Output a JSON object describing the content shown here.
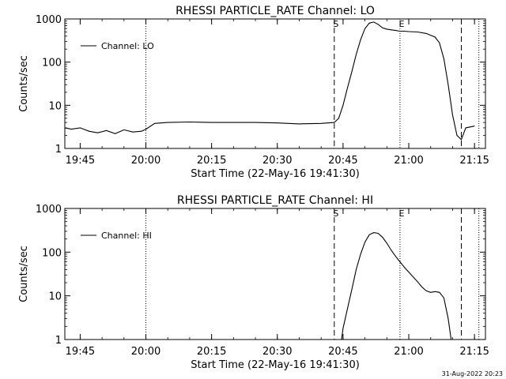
{
  "footer_date": "31-Aug-2022 20:23",
  "chart_data": [
    {
      "type": "line",
      "title": "RHESSI PARTICLE_RATE Channel: LO",
      "xlabel": "Start Time (22-May-16 19:41:30)",
      "ylabel": "Counts/sec",
      "yscale": "log",
      "xlim": [
        "19:41:30",
        "21:17:30"
      ],
      "ylim": [
        1,
        1000
      ],
      "x_ticks": [
        "19:45",
        "20:00",
        "20:15",
        "20:30",
        "20:45",
        "21:00",
        "21:15"
      ],
      "y_ticks": [
        "1",
        "10",
        "100",
        "1000"
      ],
      "legend": {
        "label": "Channel: LO",
        "position": "top-left"
      },
      "markers": [
        {
          "time": "20:00",
          "style": "dotted",
          "label": ""
        },
        {
          "time": "20:43",
          "style": "dashed",
          "label": "S"
        },
        {
          "time": "20:58",
          "style": "dotted",
          "label": "E"
        },
        {
          "time": "21:12",
          "style": "dashed",
          "label": ""
        },
        {
          "time": "21:16",
          "style": "dotted",
          "label": ""
        }
      ],
      "series": [
        {
          "values": [
            [
              "19:41:30",
              3.0
            ],
            [
              "19:43",
              2.8
            ],
            [
              "19:45",
              3.0
            ],
            [
              "19:47",
              2.5
            ],
            [
              "19:49",
              2.3
            ],
            [
              "19:51",
              2.6
            ],
            [
              "19:53",
              2.2
            ],
            [
              "19:55",
              2.7
            ],
            [
              "19:57",
              2.4
            ],
            [
              "19:59",
              2.5
            ],
            [
              "20:00",
              2.8
            ],
            [
              "20:02",
              3.8
            ],
            [
              "20:05",
              4.0
            ],
            [
              "20:10",
              4.1
            ],
            [
              "20:15",
              4.0
            ],
            [
              "20:20",
              4.0
            ],
            [
              "20:25",
              4.0
            ],
            [
              "20:30",
              3.9
            ],
            [
              "20:35",
              3.7
            ],
            [
              "20:40",
              3.8
            ],
            [
              "20:43",
              4.0
            ],
            [
              "20:44",
              5.0
            ],
            [
              "20:45",
              10
            ],
            [
              "20:46",
              25
            ],
            [
              "20:47",
              60
            ],
            [
              "20:48",
              150
            ],
            [
              "20:49",
              330
            ],
            [
              "20:50",
              600
            ],
            [
              "20:51",
              800
            ],
            [
              "20:52",
              850
            ],
            [
              "20:53",
              750
            ],
            [
              "20:54",
              620
            ],
            [
              "20:55",
              580
            ],
            [
              "20:56",
              560
            ],
            [
              "20:57",
              540
            ],
            [
              "20:58",
              520
            ],
            [
              "20:59",
              520
            ],
            [
              "21:00",
              510
            ],
            [
              "21:02",
              500
            ],
            [
              "21:04",
              460
            ],
            [
              "21:06",
              380
            ],
            [
              "21:07",
              280
            ],
            [
              "21:08",
              120
            ],
            [
              "21:09",
              30
            ],
            [
              "21:10",
              6
            ],
            [
              "21:11",
              2.0
            ],
            [
              "21:12",
              1.6
            ],
            [
              "21:13",
              3.0
            ],
            [
              "21:15",
              3.3
            ]
          ]
        }
      ]
    },
    {
      "type": "line",
      "title": "RHESSI PARTICLE_RATE Channel: HI",
      "xlabel": "Start Time (22-May-16 19:41:30)",
      "ylabel": "Counts/sec",
      "yscale": "log",
      "xlim": [
        "19:41:30",
        "21:17:30"
      ],
      "ylim": [
        1,
        1000
      ],
      "x_ticks": [
        "19:45",
        "20:00",
        "20:15",
        "20:30",
        "20:45",
        "21:00",
        "21:15"
      ],
      "y_ticks": [
        "1",
        "10",
        "100",
        "1000"
      ],
      "legend": {
        "label": "Channel: HI",
        "position": "top-left"
      },
      "markers": [
        {
          "time": "20:00",
          "style": "dotted",
          "label": ""
        },
        {
          "time": "20:43",
          "style": "dashed",
          "label": "S"
        },
        {
          "time": "20:58",
          "style": "dotted",
          "label": "E"
        },
        {
          "time": "21:12",
          "style": "dashed",
          "label": ""
        },
        {
          "time": "21:16",
          "style": "dotted",
          "label": ""
        }
      ],
      "series": [
        {
          "values": [
            [
              "20:44:40",
              1.0
            ],
            [
              "20:45",
              1.8
            ],
            [
              "20:46",
              5
            ],
            [
              "20:47",
              14
            ],
            [
              "20:48",
              40
            ],
            [
              "20:49",
              90
            ],
            [
              "20:50",
              170
            ],
            [
              "20:51",
              250
            ],
            [
              "20:52",
              280
            ],
            [
              "20:53",
              270
            ],
            [
              "20:54",
              220
            ],
            [
              "20:55",
              160
            ],
            [
              "20:56",
              110
            ],
            [
              "20:57",
              80
            ],
            [
              "20:58",
              60
            ],
            [
              "20:59",
              45
            ],
            [
              "21:00",
              35
            ],
            [
              "21:01",
              27
            ],
            [
              "21:02",
              21
            ],
            [
              "21:03",
              16
            ],
            [
              "21:04",
              13
            ],
            [
              "21:05",
              12
            ],
            [
              "21:06",
              12.5
            ],
            [
              "21:07",
              12
            ],
            [
              "21:08",
              9
            ],
            [
              "21:09",
              3
            ],
            [
              "21:09:40",
              1.0
            ]
          ]
        }
      ]
    }
  ]
}
